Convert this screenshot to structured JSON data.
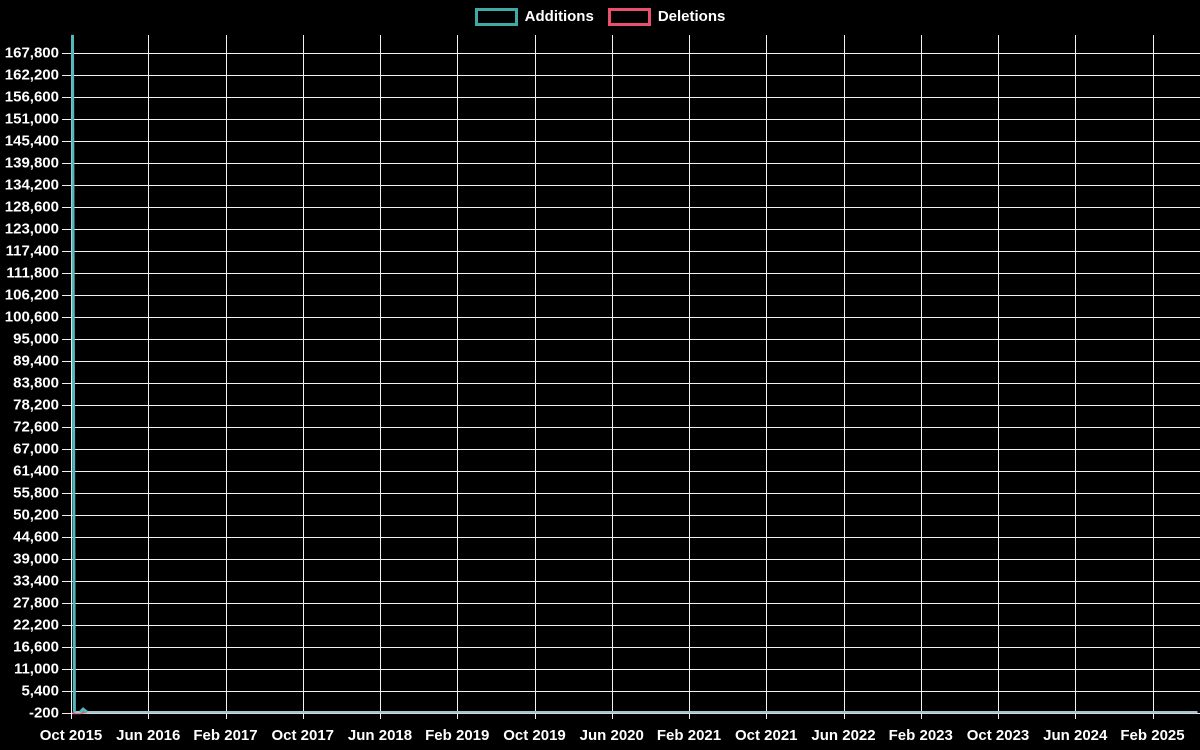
{
  "background_color": "#000000",
  "text_color": "#ffffff",
  "grid_color": "#f2f2f2",
  "legend": {
    "items": [
      {
        "label": "Additions",
        "color": "#3FA9A5"
      },
      {
        "label": "Deletions",
        "color": "#E9506D"
      }
    ]
  },
  "chart_data": {
    "type": "line",
    "title": "",
    "xlabel": "",
    "ylabel": "",
    "grid": true,
    "legend_position": "top-center",
    "y_min": -200,
    "y_max_tick": 167800,
    "y_step": 5600,
    "y_top_approx": 172400,
    "y_tick_labels": [
      "167,800",
      "162,200",
      "156,600",
      "151,000",
      "145,400",
      "139,800",
      "134,200",
      "128,600",
      "123,000",
      "117,400",
      "111,800",
      "106,200",
      "100,600",
      "95,000",
      "89,400",
      "83,800",
      "78,200",
      "72,600",
      "67,000",
      "61,400",
      "55,800",
      "50,200",
      "44,600",
      "39,000",
      "33,400",
      "27,800",
      "22,200",
      "16,600",
      "11,000",
      "5,400",
      "-200"
    ],
    "x_tick_labels": [
      "Oct 2015",
      "Jun 2016",
      "Feb 2017",
      "Oct 2017",
      "Jun 2018",
      "Feb 2019",
      "Oct 2019",
      "Jun 2020",
      "Feb 2021",
      "Oct 2021",
      "Jun 2022",
      "Feb 2023",
      "Oct 2023",
      "Jun 2024",
      "Feb 2025"
    ],
    "x_months_per_tick": 8,
    "series": [
      {
        "name": "Additions",
        "color": "#3FA9A5",
        "spike_render_color": "#55B7BA",
        "flat_render_color": "#A6C2CC",
        "points": [
          {
            "month": 0,
            "label": "Oct 2015 (first point)",
            "value": 172400
          },
          {
            "month": 0.2,
            "label": "Oct 2015",
            "value": 0
          },
          {
            "month": 0.8,
            "label": "Nov 2015",
            "value": 0
          },
          {
            "month": 1.1,
            "label": "Nov 2015",
            "value": 800
          },
          {
            "month": 1.5,
            "label": "Nov 2015",
            "value": 0
          },
          {
            "month": 116.5,
            "label": "Jul 2025 (last point)",
            "value": 0
          }
        ],
        "note": "Single large spike of ~172,400 additions at the very first point (Oct 2015); ~0 for the rest of the range."
      },
      {
        "name": "Deletions",
        "color": "#E9506D",
        "points": [
          {
            "month": 0,
            "label": "Oct 2015 (first point)",
            "value": -200
          },
          {
            "month": 0.8,
            "label": "Nov 2015",
            "value": -200
          },
          {
            "month": 1.2,
            "label": "Nov 2015",
            "value": 0
          },
          {
            "month": 116.5,
            "label": "Jul 2025 (last point)",
            "value": 0
          }
        ],
        "note": "Tiny negative dip (~-200) at the very start; ~0 for the rest of the range."
      }
    ]
  }
}
